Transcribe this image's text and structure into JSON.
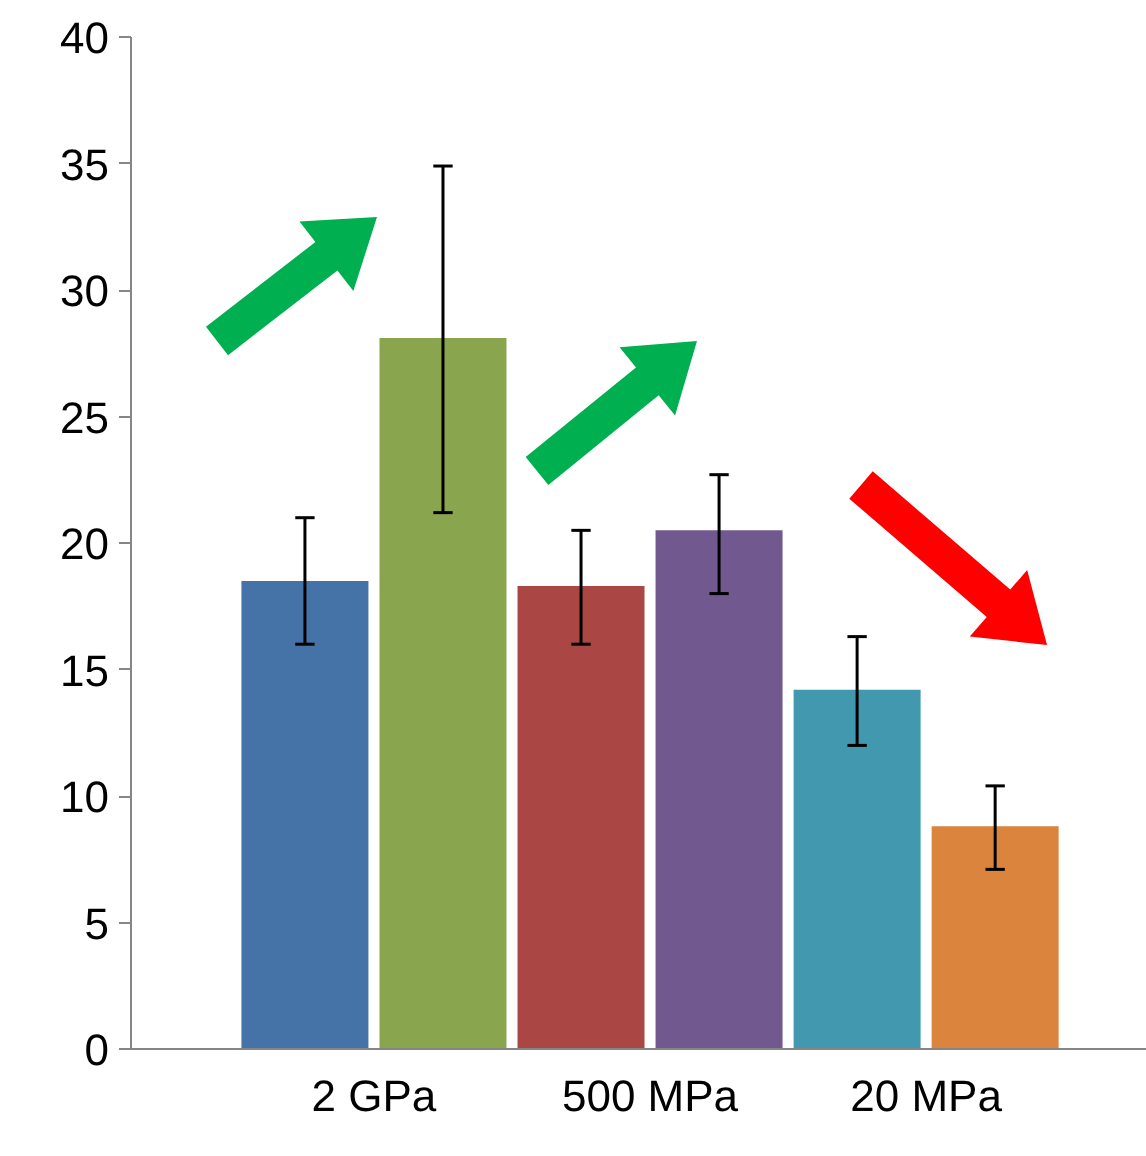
{
  "chart_data": {
    "type": "bar",
    "categories": [
      "2 GPa",
      "500 MPa",
      "20 MPa"
    ],
    "series": [
      {
        "values": [
          18.5,
          18.3,
          14.2
        ],
        "colors": [
          "#4572a7",
          "#aa4643",
          "#4198af"
        ],
        "errors": [
          [
            16.0,
            21.0
          ],
          [
            16.0,
            20.5
          ],
          [
            12.0,
            16.3
          ]
        ]
      },
      {
        "values": [
          28.1,
          20.5,
          8.8
        ],
        "colors": [
          "#89a54e",
          "#71588f",
          "#db843d"
        ],
        "errors": [
          [
            21.2,
            34.9
          ],
          [
            18.0,
            22.7
          ],
          [
            7.1,
            10.4
          ]
        ]
      }
    ],
    "ylim": [
      0,
      40
    ],
    "yticks": [
      0,
      5,
      10,
      15,
      20,
      25,
      30,
      35,
      40
    ],
    "grid": false
  }
}
